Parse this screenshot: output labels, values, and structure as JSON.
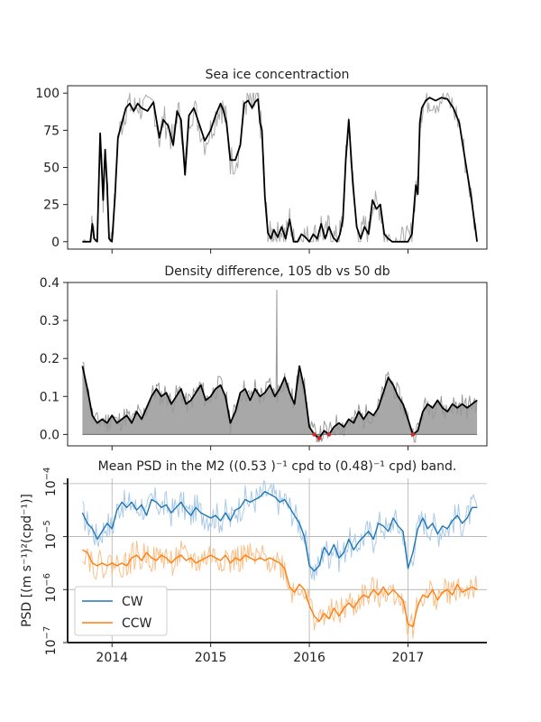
{
  "chart_data": [
    {
      "type": "line",
      "title": "Sea ice concentraction",
      "xlim": [
        2013.55,
        2017.8
      ],
      "ylim": [
        -5,
        105
      ],
      "yticks": [
        0,
        25,
        50,
        75,
        100
      ],
      "series": [
        {
          "color": "#000000",
          "x": [
            2013.7,
            2013.78,
            2013.8,
            2013.82,
            2013.85,
            2013.88,
            2013.91,
            2013.93,
            2013.95,
            2013.97,
            2014.0,
            2014.03,
            2014.06,
            2014.1,
            2014.14,
            2014.18,
            2014.22,
            2014.26,
            2014.3,
            2014.36,
            2014.42,
            2014.48,
            2014.52,
            2014.57,
            2014.62,
            2014.66,
            2014.7,
            2014.74,
            2014.78,
            2014.83,
            2014.88,
            2014.94,
            2015.0,
            2015.05,
            2015.1,
            2015.13,
            2015.16,
            2015.2,
            2015.25,
            2015.3,
            2015.34,
            2015.38,
            2015.42,
            2015.45,
            2015.48,
            2015.5,
            2015.52,
            2015.55,
            2015.58,
            2015.61,
            2015.64,
            2015.68,
            2015.72,
            2015.76,
            2015.8,
            2015.84,
            2015.88,
            2015.92,
            2015.96,
            2016.0,
            2016.04,
            2016.08,
            2016.12,
            2016.16,
            2016.2,
            2016.24,
            2016.28,
            2016.31,
            2016.34,
            2016.37,
            2016.4,
            2016.44,
            2016.48,
            2016.52,
            2016.56,
            2016.6,
            2016.64,
            2016.68,
            2016.72,
            2016.76,
            2016.8,
            2016.84,
            2016.88,
            2016.92,
            2016.96,
            2017.0,
            2017.04,
            2017.08,
            2017.1,
            2017.12,
            2017.14,
            2017.18,
            2017.22,
            2017.28,
            2017.34,
            2017.4,
            2017.46,
            2017.52,
            2017.58,
            2017.64,
            2017.7
          ],
          "y": [
            0,
            0,
            12,
            2,
            0,
            73,
            28,
            62,
            38,
            2,
            0,
            30,
            70,
            80,
            90,
            93,
            88,
            93,
            90,
            88,
            94,
            70,
            82,
            78,
            65,
            88,
            82,
            45,
            85,
            90,
            80,
            68,
            75,
            85,
            93,
            88,
            80,
            55,
            55,
            65,
            93,
            95,
            90,
            94,
            96,
            80,
            75,
            30,
            6,
            2,
            8,
            3,
            10,
            2,
            15,
            0,
            0,
            5,
            3,
            0,
            5,
            2,
            12,
            2,
            10,
            3,
            0,
            5,
            15,
            55,
            82,
            40,
            10,
            2,
            10,
            5,
            28,
            22,
            25,
            5,
            2,
            0,
            0,
            0,
            0,
            0,
            5,
            38,
            32,
            80,
            90,
            95,
            97,
            95,
            97,
            96,
            90,
            80,
            55,
            30,
            0
          ]
        }
      ]
    },
    {
      "type": "area",
      "title": "Density difference, 105 db vs 50 db",
      "xlim": [
        2013.55,
        2017.8
      ],
      "ylim": [
        -0.03,
        0.4
      ],
      "yticks": [
        0.0,
        0.1,
        0.2,
        0.3,
        0.4
      ],
      "series": [
        {
          "color": "#000000",
          "x": [
            2013.7,
            2013.75,
            2013.8,
            2013.85,
            2013.9,
            2013.95,
            2014.0,
            2014.05,
            2014.1,
            2014.15,
            2014.2,
            2014.25,
            2014.3,
            2014.35,
            2014.4,
            2014.45,
            2014.5,
            2014.55,
            2014.6,
            2014.65,
            2014.7,
            2014.75,
            2014.8,
            2014.85,
            2014.9,
            2014.95,
            2015.0,
            2015.05,
            2015.1,
            2015.15,
            2015.2,
            2015.25,
            2015.3,
            2015.35,
            2015.4,
            2015.45,
            2015.5,
            2015.55,
            2015.6,
            2015.65,
            2015.7,
            2015.75,
            2015.8,
            2015.85,
            2015.9,
            2015.95,
            2016.0,
            2016.05,
            2016.1,
            2016.15,
            2016.2,
            2016.25,
            2016.3,
            2016.35,
            2016.4,
            2016.45,
            2016.5,
            2016.55,
            2016.6,
            2016.65,
            2016.7,
            2016.75,
            2016.8,
            2016.85,
            2016.9,
            2016.95,
            2017.0,
            2017.05,
            2017.1,
            2017.15,
            2017.2,
            2017.25,
            2017.3,
            2017.35,
            2017.4,
            2017.45,
            2017.5,
            2017.55,
            2017.6,
            2017.65,
            2017.7
          ],
          "y": [
            0.18,
            0.12,
            0.05,
            0.03,
            0.04,
            0.03,
            0.05,
            0.03,
            0.04,
            0.05,
            0.03,
            0.06,
            0.04,
            0.07,
            0.1,
            0.12,
            0.1,
            0.11,
            0.08,
            0.1,
            0.12,
            0.08,
            0.09,
            0.11,
            0.13,
            0.09,
            0.1,
            0.12,
            0.13,
            0.1,
            0.03,
            0.06,
            0.11,
            0.12,
            0.09,
            0.12,
            0.1,
            0.11,
            0.13,
            0.1,
            0.12,
            0.15,
            0.11,
            0.08,
            0.18,
            0.12,
            0.02,
            0.0,
            -0.01,
            0.01,
            0.0,
            0.02,
            0.03,
            0.02,
            0.04,
            0.03,
            0.06,
            0.04,
            0.06,
            0.05,
            0.07,
            0.11,
            0.15,
            0.13,
            0.1,
            0.08,
            0.04,
            0.0,
            0.01,
            0.06,
            0.08,
            0.07,
            0.09,
            0.07,
            0.06,
            0.08,
            0.07,
            0.08,
            0.07,
            0.08,
            0.09
          ]
        }
      ]
    },
    {
      "type": "line",
      "title": "Mean PSD in the M2 ((0.53 )⁻¹ cpd to (0.48)⁻¹ cpd) band.",
      "ylabel": "PSD [(m s⁻¹)²(cpd⁻¹)]",
      "yscale": "log",
      "xlim": [
        2013.55,
        2017.8
      ],
      "ylim_log10": [
        -7,
        -3.9
      ],
      "yticks_log10": [
        -7,
        -6,
        -5,
        -4
      ],
      "ytick_labels": [
        "10",
        "10",
        "10",
        "10"
      ],
      "ytick_exponents": [
        "−7",
        "−6",
        "−5",
        "−4"
      ],
      "xticks": [
        2014,
        2015,
        2016,
        2017
      ],
      "xtick_labels": [
        "2014",
        "2015",
        "2016",
        "2017"
      ],
      "grid": true,
      "legend_position": "lower-left",
      "series": [
        {
          "name": "CW",
          "color": "#1f77b4",
          "x": [
            2013.7,
            2013.75,
            2013.8,
            2013.85,
            2013.9,
            2013.95,
            2014.0,
            2014.05,
            2014.1,
            2014.15,
            2014.2,
            2014.25,
            2014.3,
            2014.35,
            2014.4,
            2014.45,
            2014.5,
            2014.55,
            2014.6,
            2014.65,
            2014.7,
            2014.75,
            2014.8,
            2014.85,
            2014.9,
            2014.95,
            2015.0,
            2015.05,
            2015.1,
            2015.15,
            2015.2,
            2015.25,
            2015.3,
            2015.35,
            2015.4,
            2015.45,
            2015.5,
            2015.55,
            2015.6,
            2015.65,
            2015.7,
            2015.75,
            2015.8,
            2015.85,
            2015.9,
            2015.95,
            2016.0,
            2016.05,
            2016.1,
            2016.15,
            2016.2,
            2016.25,
            2016.3,
            2016.35,
            2016.4,
            2016.45,
            2016.5,
            2016.55,
            2016.6,
            2016.65,
            2016.7,
            2016.75,
            2016.8,
            2016.85,
            2016.9,
            2016.95,
            2017.0,
            2017.05,
            2017.1,
            2017.15,
            2017.2,
            2017.25,
            2017.3,
            2017.35,
            2017.4,
            2017.45,
            2017.5,
            2017.55,
            2017.6,
            2017.65,
            2017.7
          ],
          "log10_y": [
            -4.55,
            -4.75,
            -4.85,
            -5.05,
            -4.9,
            -4.75,
            -4.85,
            -4.5,
            -4.35,
            -4.45,
            -4.35,
            -4.5,
            -4.4,
            -4.6,
            -4.3,
            -4.35,
            -4.45,
            -4.4,
            -4.55,
            -4.45,
            -4.35,
            -4.5,
            -4.6,
            -4.45,
            -4.55,
            -4.6,
            -4.65,
            -4.6,
            -4.7,
            -4.55,
            -4.7,
            -4.5,
            -4.45,
            -4.3,
            -4.35,
            -4.3,
            -4.25,
            -4.15,
            -4.2,
            -4.25,
            -4.35,
            -4.3,
            -4.45,
            -4.6,
            -4.75,
            -5.0,
            -5.55,
            -5.65,
            -5.55,
            -5.2,
            -5.35,
            -5.15,
            -5.4,
            -5.3,
            -5.05,
            -5.25,
            -5.1,
            -5.0,
            -4.9,
            -5.05,
            -4.75,
            -4.8,
            -4.9,
            -4.65,
            -4.8,
            -4.9,
            -5.6,
            -5.3,
            -4.85,
            -4.65,
            -4.85,
            -4.75,
            -4.95,
            -4.8,
            -4.85,
            -4.7,
            -4.6,
            -4.75,
            -4.65,
            -4.45,
            -4.45
          ]
        },
        {
          "name": "CCW",
          "color": "#ff7f0e",
          "x": [
            2013.7,
            2013.75,
            2013.8,
            2013.85,
            2013.9,
            2013.95,
            2014.0,
            2014.05,
            2014.1,
            2014.15,
            2014.2,
            2014.25,
            2014.3,
            2014.35,
            2014.4,
            2014.45,
            2014.5,
            2014.55,
            2014.6,
            2014.65,
            2014.7,
            2014.75,
            2014.8,
            2014.85,
            2014.9,
            2014.95,
            2015.0,
            2015.05,
            2015.1,
            2015.15,
            2015.2,
            2015.25,
            2015.3,
            2015.35,
            2015.4,
            2015.45,
            2015.5,
            2015.55,
            2015.6,
            2015.65,
            2015.7,
            2015.75,
            2015.8,
            2015.85,
            2015.9,
            2015.95,
            2016.0,
            2016.05,
            2016.1,
            2016.15,
            2016.2,
            2016.25,
            2016.3,
            2016.35,
            2016.4,
            2016.45,
            2016.5,
            2016.55,
            2016.6,
            2016.65,
            2016.7,
            2016.75,
            2016.8,
            2016.85,
            2016.9,
            2016.95,
            2017.0,
            2017.05,
            2017.1,
            2017.15,
            2017.2,
            2017.25,
            2017.3,
            2017.35,
            2017.4,
            2017.45,
            2017.5,
            2017.55,
            2017.6,
            2017.65,
            2017.7
          ],
          "log10_y": [
            -5.25,
            -5.3,
            -5.5,
            -5.55,
            -5.5,
            -5.55,
            -5.5,
            -5.55,
            -5.5,
            -5.55,
            -5.4,
            -5.35,
            -5.45,
            -5.3,
            -5.4,
            -5.45,
            -5.35,
            -5.4,
            -5.5,
            -5.4,
            -5.35,
            -5.45,
            -5.4,
            -5.5,
            -5.45,
            -5.4,
            -5.35,
            -5.4,
            -5.45,
            -5.35,
            -5.5,
            -5.4,
            -5.45,
            -5.35,
            -5.4,
            -5.45,
            -5.4,
            -5.45,
            -5.4,
            -5.45,
            -5.5,
            -5.6,
            -5.95,
            -6.05,
            -5.9,
            -6.0,
            -6.3,
            -6.5,
            -6.6,
            -6.45,
            -6.55,
            -6.35,
            -6.5,
            -6.35,
            -6.25,
            -6.35,
            -6.2,
            -6.1,
            -6.15,
            -6.0,
            -6.1,
            -5.95,
            -6.1,
            -6.0,
            -6.1,
            -6.2,
            -6.65,
            -6.7,
            -6.3,
            -6.1,
            -6.15,
            -6.0,
            -6.2,
            -6.05,
            -6.0,
            -6.1,
            -5.9,
            -6.05,
            -6.0,
            -5.95,
            -6.0
          ]
        }
      ]
    }
  ]
}
